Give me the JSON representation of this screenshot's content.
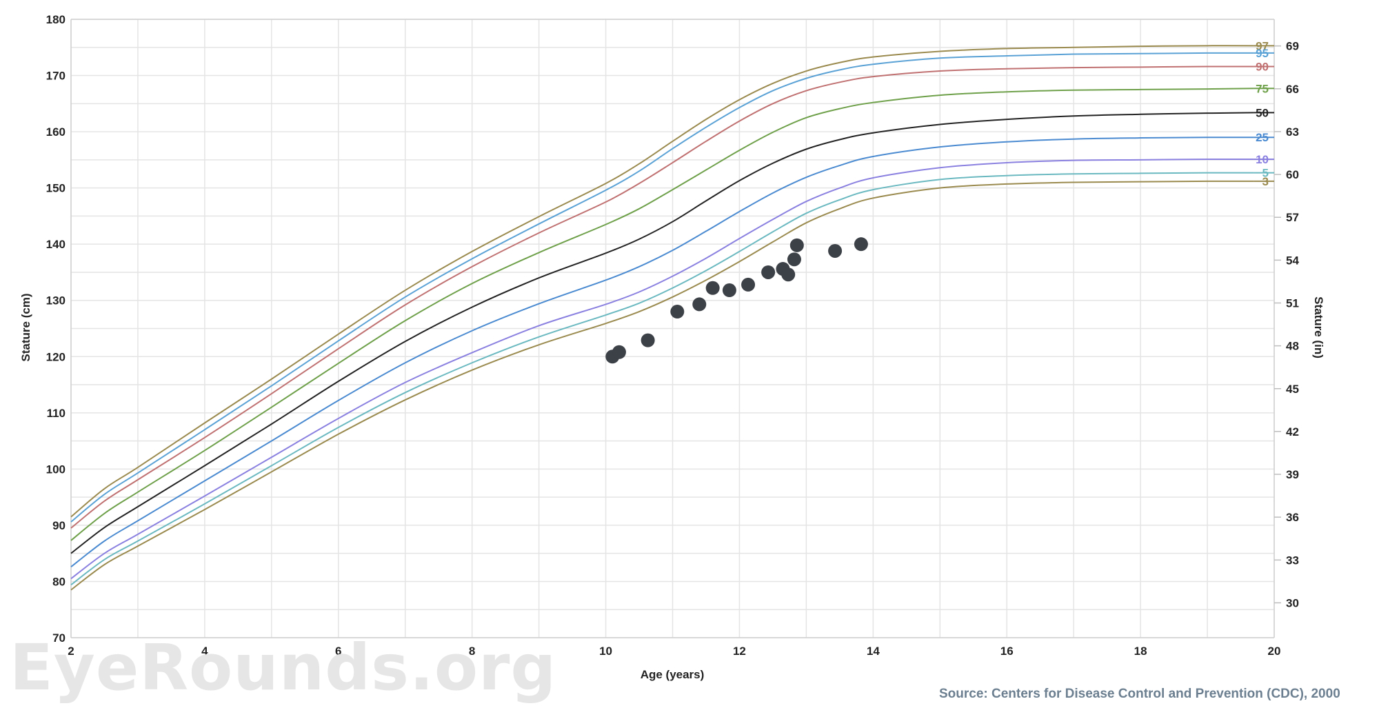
{
  "watermark": "EyeRounds.org",
  "source": "Source: Centers for Disease Control and Prevention (CDC), 2000",
  "chart_data": {
    "type": "line",
    "xlabel": "Age (years)",
    "ylabel": "Stature (cm)",
    "ylabel_right": "Stature (in)",
    "xlim": [
      2,
      20
    ],
    "ylim": [
      70,
      180
    ],
    "x_ticks": [
      2,
      4,
      6,
      8,
      10,
      12,
      14,
      16,
      18,
      20
    ],
    "y_ticks": [
      70,
      80,
      90,
      100,
      110,
      120,
      130,
      140,
      150,
      160,
      170,
      180
    ],
    "y_right_ticks": [
      30,
      33,
      36,
      39,
      42,
      45,
      48,
      51,
      54,
      57,
      60,
      63,
      66,
      69
    ],
    "grid": true,
    "x": [
      2,
      2.5,
      3,
      4,
      5,
      6,
      7,
      8,
      9,
      10,
      10.5,
      11,
      11.5,
      12,
      12.5,
      13,
      13.5,
      14,
      15,
      16,
      17,
      18,
      19,
      19.7
    ],
    "series": [
      {
        "name": "97",
        "color": "#9a8a4e",
        "values": [
          91.5,
          96.5,
          100.3,
          108.2,
          116.0,
          124.0,
          131.8,
          138.7,
          144.9,
          150.8,
          154.3,
          158.3,
          162.2,
          165.7,
          168.6,
          170.8,
          172.3,
          173.3,
          174.3,
          174.8,
          175.0,
          175.2,
          175.3,
          175.3
        ]
      },
      {
        "name": "95",
        "color": "#5aa2d6",
        "values": [
          90.6,
          95.5,
          99.3,
          107.0,
          114.8,
          122.8,
          130.6,
          137.4,
          143.6,
          149.6,
          153.0,
          157.0,
          160.8,
          164.3,
          167.3,
          169.5,
          171.0,
          172.0,
          173.1,
          173.5,
          173.8,
          173.9,
          174.0,
          174.0
        ]
      },
      {
        "name": "90",
        "color": "#c07070",
        "values": [
          89.5,
          94.3,
          98.1,
          105.6,
          113.4,
          121.4,
          129.2,
          136.0,
          142.0,
          147.5,
          150.8,
          154.5,
          158.3,
          161.9,
          165.0,
          167.3,
          168.8,
          169.8,
          170.8,
          171.2,
          171.4,
          171.5,
          171.6,
          171.6
        ]
      },
      {
        "name": "75",
        "color": "#6ea04a",
        "values": [
          87.3,
          92.1,
          95.9,
          103.3,
          111.0,
          118.8,
          126.4,
          133.0,
          138.5,
          143.5,
          146.3,
          149.7,
          153.2,
          156.7,
          159.9,
          162.5,
          164.1,
          165.2,
          166.5,
          167.1,
          167.4,
          167.5,
          167.6,
          167.7
        ]
      },
      {
        "name": "50",
        "color": "#222222",
        "values": [
          85.0,
          89.6,
          93.3,
          100.6,
          108.0,
          115.6,
          122.7,
          128.8,
          134.0,
          138.4,
          140.9,
          144.0,
          147.7,
          151.3,
          154.4,
          156.9,
          158.6,
          159.8,
          161.3,
          162.2,
          162.8,
          163.1,
          163.3,
          163.4
        ]
      },
      {
        "name": "25",
        "color": "#4a8ad0",
        "values": [
          82.6,
          87.2,
          90.8,
          97.9,
          105.0,
          112.2,
          118.9,
          124.6,
          129.4,
          133.6,
          136.0,
          138.9,
          142.3,
          145.8,
          149.1,
          151.9,
          154.0,
          155.6,
          157.3,
          158.2,
          158.7,
          158.9,
          159.0,
          159.0
        ]
      },
      {
        "name": "10",
        "color": "#8a80e0",
        "values": [
          80.5,
          85.0,
          88.4,
          95.2,
          102.1,
          109.0,
          115.4,
          120.7,
          125.5,
          129.3,
          131.5,
          134.3,
          137.5,
          141.0,
          144.4,
          147.6,
          150.0,
          151.8,
          153.6,
          154.5,
          154.9,
          155.0,
          155.1,
          155.1
        ]
      },
      {
        "name": "5",
        "color": "#6ab8c0",
        "values": [
          79.4,
          83.9,
          87.2,
          93.8,
          100.6,
          107.4,
          113.6,
          118.9,
          123.5,
          127.4,
          129.5,
          132.2,
          135.3,
          138.7,
          142.2,
          145.5,
          147.9,
          149.7,
          151.5,
          152.2,
          152.5,
          152.6,
          152.7,
          152.7
        ]
      },
      {
        "name": "3",
        "color": "#9a8a4e",
        "values": [
          78.5,
          83.0,
          86.3,
          92.8,
          99.5,
          106.2,
          112.3,
          117.6,
          122.1,
          125.9,
          128.0,
          130.6,
          133.6,
          136.9,
          140.4,
          143.8,
          146.3,
          148.2,
          150.0,
          150.7,
          151.0,
          151.1,
          151.2,
          151.2
        ]
      }
    ],
    "points": [
      {
        "x": 10.1,
        "y": 120.0
      },
      {
        "x": 10.2,
        "y": 120.8
      },
      {
        "x": 10.63,
        "y": 122.9
      },
      {
        "x": 11.07,
        "y": 128.0
      },
      {
        "x": 11.4,
        "y": 129.3
      },
      {
        "x": 11.6,
        "y": 132.2
      },
      {
        "x": 11.85,
        "y": 131.8
      },
      {
        "x": 12.13,
        "y": 132.8
      },
      {
        "x": 12.43,
        "y": 135.0
      },
      {
        "x": 12.65,
        "y": 135.6
      },
      {
        "x": 12.73,
        "y": 134.6
      },
      {
        "x": 12.82,
        "y": 137.3
      },
      {
        "x": 12.86,
        "y": 139.8
      },
      {
        "x": 13.43,
        "y": 138.8
      },
      {
        "x": 13.82,
        "y": 140.0
      }
    ]
  }
}
